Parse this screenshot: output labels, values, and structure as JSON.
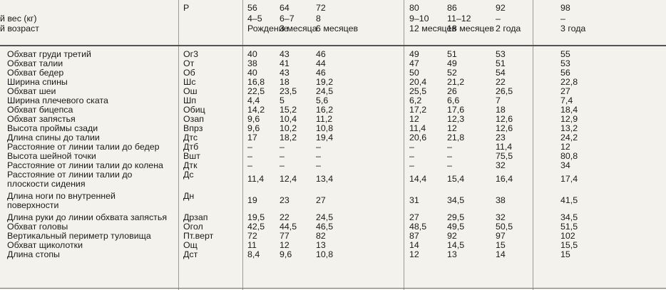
{
  "header": {
    "left_line1": "й вес (кг)",
    "left_line2": "й возраст",
    "code_label": "Р",
    "columns": [
      {
        "weight": "56",
        "height": "4–5",
        "age": "Рождение"
      },
      {
        "weight": "64",
        "height": "6–7",
        "age": "3 месяца"
      },
      {
        "weight": "72",
        "height": "8",
        "age": "6 месяцев"
      },
      {
        "weight": "80",
        "height": "9–10",
        "age": "12 месяцев"
      },
      {
        "weight": "86",
        "height": "11–12",
        "age": "18 месяцев"
      },
      {
        "weight": "92",
        "height": "–",
        "age": "2 года"
      },
      {
        "weight": "98",
        "height": "–",
        "age": "3 года"
      }
    ]
  },
  "rows": [
    {
      "label": "Обхват груди третий",
      "code": "Ог3",
      "v": [
        "40",
        "43",
        "46",
        "49",
        "51",
        "53",
        "55"
      ]
    },
    {
      "label": "Обхват талии",
      "code": "От",
      "v": [
        "38",
        "41",
        "44",
        "47",
        "49",
        "51",
        "53"
      ]
    },
    {
      "label": "Обхват бедер",
      "code": "Об",
      "v": [
        "40",
        "43",
        "46",
        "50",
        "52",
        "54",
        "56"
      ]
    },
    {
      "label": "Ширина спины",
      "code": "Шс",
      "v": [
        "16,8",
        "18",
        "19,2",
        "20,4",
        "21,2",
        "22",
        "22,8"
      ]
    },
    {
      "label": "Обхват шеи",
      "code": "Ош",
      "v": [
        "22,5",
        "23,5",
        "24,5",
        "25,5",
        "26",
        "26,5",
        "27"
      ]
    },
    {
      "label": "Ширина плечевого ската",
      "code": "Шп",
      "v": [
        "4,4",
        "5",
        "5,6",
        "6,2",
        "6,6",
        "7",
        "7,4"
      ]
    },
    {
      "label": "Обхват бицепса",
      "code": "Обиц",
      "v": [
        "14,2",
        "15,2",
        "16,2",
        "17,2",
        "17,6",
        "18",
        "18,4"
      ]
    },
    {
      "label": "Обхват запястья",
      "code": "Озап",
      "v": [
        "9,6",
        "10,4",
        "11,2",
        "12",
        "12,3",
        "12,6",
        "12,9"
      ]
    },
    {
      "label": "Высота проймы сзади",
      "code": "Впрз",
      "v": [
        "9,6",
        "10,2",
        "10,8",
        "11,4",
        "12",
        "12,6",
        "13,2"
      ]
    },
    {
      "label": "Длина спины до талии",
      "code": "Дтс",
      "v": [
        "17",
        "18,2",
        "19,4",
        "20,6",
        "21,8",
        "23",
        "24,2"
      ]
    },
    {
      "label": "Расстояние от линии талии до бедер",
      "code": "Дтб",
      "v": [
        "–",
        "–",
        "–",
        "–",
        "–",
        "11,4",
        "12"
      ]
    },
    {
      "label": "Высота шейной точки",
      "code": "Вшт",
      "v": [
        "–",
        "–",
        "–",
        "–",
        "–",
        "75,5",
        "80,8"
      ]
    },
    {
      "label": "Расстояние от линии талии до колена",
      "code": "Дтк",
      "v": [
        "–",
        "–",
        "–",
        "–",
        "–",
        "32",
        "34"
      ]
    },
    {
      "label": "Расстояние от линии талии до",
      "label2": "плоскости сидения",
      "code": "Дс",
      "v": [
        "11,4",
        "12,4",
        "13,4",
        "14,4",
        "15,4",
        "16,4",
        "17,4"
      ]
    },
    {
      "label": "Длина ноги по внутренней",
      "label2": "поверхности",
      "code": "Дн",
      "v": [
        "19",
        "23",
        "27",
        "31",
        "34,5",
        "38",
        "41,5"
      ]
    },
    {
      "label": "Длина руки до линии обхвата запястья",
      "code": "Дрзап",
      "v": [
        "19,5",
        "22",
        "24,5",
        "27",
        "29,5",
        "32",
        "34,5"
      ]
    },
    {
      "label": "Обхват головы",
      "code": "Огол",
      "v": [
        "42,5",
        "44,5",
        "46,5",
        "48,5",
        "49,5",
        "50,5",
        "51,5"
      ]
    },
    {
      "label": "Вертикальный периметр туловища",
      "code": "Пт.верт",
      "v": [
        "72",
        "77",
        "82",
        "87",
        "92",
        "97",
        "102"
      ]
    },
    {
      "label": "Обхват щиколотки",
      "code": "Ощ",
      "v": [
        "11",
        "12",
        "13",
        "14",
        "14,5",
        "15",
        "15,5"
      ]
    },
    {
      "label": "Длина стопы",
      "code": "Дст",
      "v": [
        "8,4",
        "9,6",
        "10,8",
        "12",
        "13",
        "14",
        "15"
      ]
    }
  ]
}
